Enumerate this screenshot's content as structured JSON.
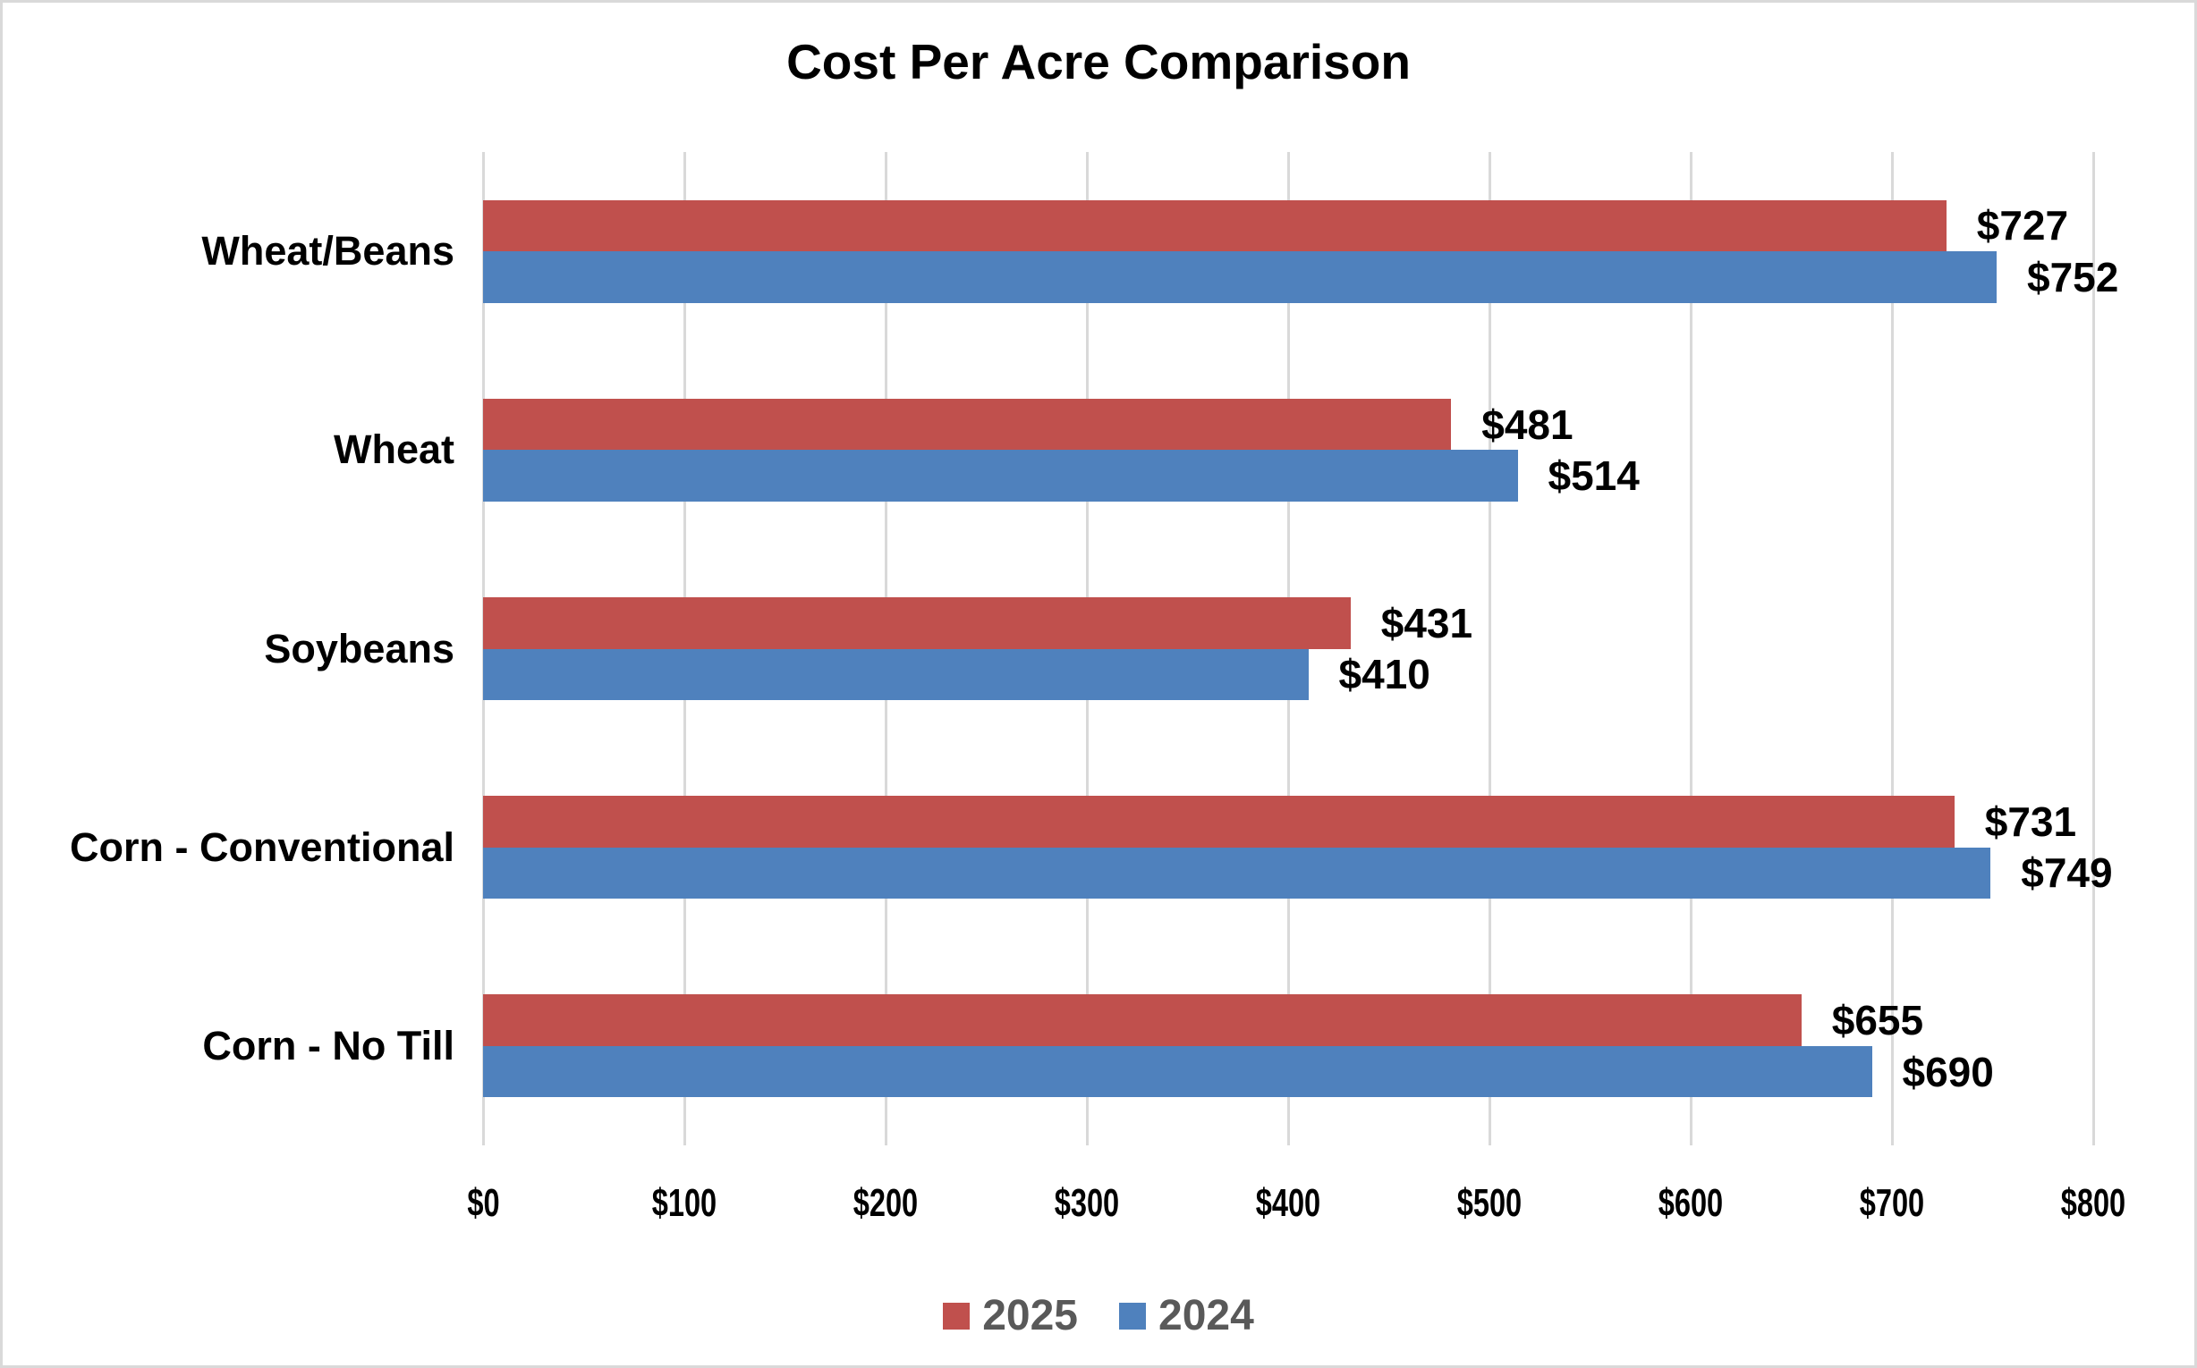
{
  "chart_data": {
    "type": "bar",
    "orientation": "horizontal",
    "title": "Cost Per Acre Comparison",
    "categories": [
      "Wheat/Beans",
      "Wheat",
      "Soybeans",
      "Corn - Conventional",
      "Corn - No Till"
    ],
    "series": [
      {
        "name": "2025",
        "color": "#C0504D",
        "values": [
          727,
          481,
          431,
          731,
          655
        ],
        "labels": [
          "$727",
          "$481",
          "$431",
          "$731",
          "$655"
        ]
      },
      {
        "name": "2024",
        "color": "#4F81BD",
        "values": [
          752,
          514,
          410,
          749,
          690
        ],
        "labels": [
          "$752",
          "$514",
          "$410",
          "$749",
          "$690"
        ]
      }
    ],
    "xlim": [
      0,
      800
    ],
    "x_ticks": [
      {
        "value": 0,
        "label": "$0"
      },
      {
        "value": 100,
        "label": "$100"
      },
      {
        "value": 200,
        "label": "$200"
      },
      {
        "value": 300,
        "label": "$300"
      },
      {
        "value": 400,
        "label": "$400"
      },
      {
        "value": 500,
        "label": "$500"
      },
      {
        "value": 600,
        "label": "$600"
      },
      {
        "value": 700,
        "label": "$700"
      },
      {
        "value": 800,
        "label": "$800"
      }
    ],
    "grid": true,
    "gridline_color": "#D9D9D9",
    "legend_position": "bottom",
    "legend_text_color": "#595959",
    "value_label_color": "#000000",
    "background_color": "#FFFFFF",
    "border_color": "#D9D9D9"
  }
}
